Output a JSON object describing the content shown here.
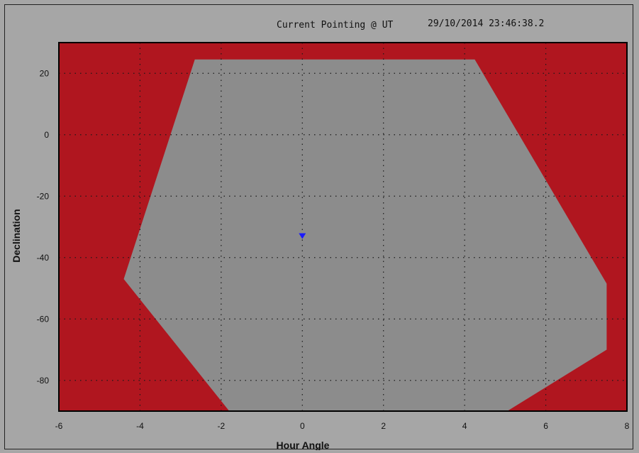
{
  "header": {
    "label": "Current Pointing @ UT",
    "timestamp": "29/10/2014 23:46:38.2"
  },
  "colors": {
    "background": "#a6a6a6",
    "forbidden_region": "#b0161f",
    "allowed_region": "#8c8c8c",
    "pointing_marker": "#1a1aff",
    "grid": "#1a1a1a"
  },
  "chart_data": {
    "type": "area",
    "xlabel": "Hour Angle",
    "ylabel": "Declination",
    "xlim": [
      -6,
      8
    ],
    "ylim": [
      -90,
      30
    ],
    "xticks": [
      -6,
      -4,
      -2,
      0,
      2,
      4,
      6,
      8
    ],
    "yticks": [
      20,
      0,
      -20,
      -40,
      -60,
      -80
    ],
    "grid": true,
    "series": [
      {
        "role": "allowed pointing region",
        "x": [
          -2.65,
          4.25,
          7.5,
          7.5,
          5.05,
          -1.8,
          -4.4
        ],
        "y": [
          24.5,
          24.5,
          -48.5,
          -70,
          -90,
          -90,
          -47
        ]
      },
      {
        "role": "current pointing",
        "x": [
          0
        ],
        "y": [
          -33
        ]
      }
    ]
  }
}
